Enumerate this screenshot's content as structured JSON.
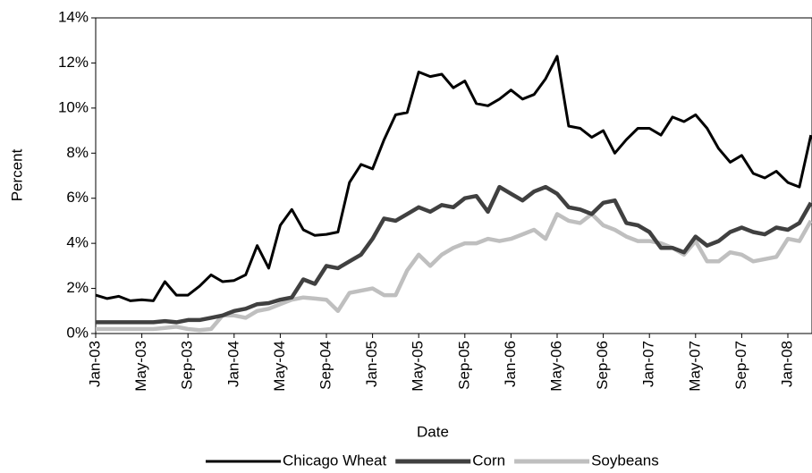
{
  "chart_data": {
    "type": "line",
    "x_label": "Date",
    "y_label": "Percent",
    "categories": [
      "Jan-03",
      null,
      null,
      null,
      "May-03",
      null,
      null,
      null,
      "Sep-03",
      null,
      null,
      null,
      "Jan-04",
      null,
      null,
      null,
      "May-04",
      null,
      null,
      null,
      "Sep-04",
      null,
      null,
      null,
      "Jan-05",
      null,
      null,
      null,
      "May-05",
      null,
      null,
      null,
      "Sep-05",
      null,
      null,
      null,
      "Jan-06",
      null,
      null,
      null,
      "May-06",
      null,
      null,
      null,
      "Sep-06",
      null,
      null,
      null,
      "Jan-07",
      null,
      null,
      null,
      "May-07",
      null,
      null,
      null,
      "Sep-07",
      null,
      null,
      null,
      "Jan-08",
      null,
      null
    ],
    "series": [
      {
        "name": "Chicago Wheat",
        "color": "#000000",
        "values": [
          1.7,
          1.55,
          1.65,
          1.45,
          1.5,
          1.45,
          2.3,
          1.7,
          1.7,
          2.1,
          2.6,
          2.3,
          2.35,
          2.6,
          3.9,
          2.9,
          4.8,
          5.5,
          4.6,
          4.35,
          4.4,
          4.5,
          6.7,
          7.5,
          7.3,
          8.6,
          9.7,
          9.8,
          11.6,
          11.4,
          11.5,
          10.9,
          11.2,
          10.2,
          10.1,
          10.4,
          10.8,
          10.4,
          10.6,
          11.3,
          12.3,
          9.2,
          9.1,
          8.7,
          9.0,
          8.0,
          8.6,
          9.1,
          9.1,
          8.8,
          9.6,
          9.4,
          9.7,
          9.1,
          8.2,
          7.6,
          7.9,
          7.1,
          6.9,
          7.2,
          6.7,
          6.5,
          8.8
        ]
      },
      {
        "name": "Corn",
        "color": "#404040",
        "values": [
          0.5,
          0.5,
          0.5,
          0.5,
          0.5,
          0.5,
          0.55,
          0.5,
          0.6,
          0.6,
          0.7,
          0.8,
          1.0,
          1.1,
          1.3,
          1.35,
          1.5,
          1.6,
          2.4,
          2.2,
          3.0,
          2.9,
          3.2,
          3.5,
          4.2,
          5.1,
          5.0,
          5.3,
          5.6,
          5.4,
          5.7,
          5.6,
          6.0,
          6.1,
          5.4,
          6.5,
          6.2,
          5.9,
          6.3,
          6.5,
          6.2,
          5.6,
          5.5,
          5.3,
          5.8,
          5.9,
          4.9,
          4.8,
          4.5,
          3.8,
          3.8,
          3.6,
          4.3,
          3.9,
          4.1,
          4.5,
          4.7,
          4.5,
          4.4,
          4.7,
          4.6,
          4.9,
          5.8
        ]
      },
      {
        "name": "Soybeans",
        "color": "#bfbfbf",
        "values": [
          0.2,
          0.2,
          0.2,
          0.2,
          0.2,
          0.2,
          0.25,
          0.3,
          0.2,
          0.15,
          0.2,
          0.8,
          0.8,
          0.7,
          1.0,
          1.1,
          1.3,
          1.5,
          1.6,
          1.55,
          1.5,
          1.0,
          1.8,
          1.9,
          2.0,
          1.7,
          1.7,
          2.8,
          3.5,
          3.0,
          3.5,
          3.8,
          4.0,
          4.0,
          4.2,
          4.1,
          4.2,
          4.4,
          4.6,
          4.2,
          5.3,
          5.0,
          4.9,
          5.3,
          4.8,
          4.6,
          4.3,
          4.1,
          4.1,
          4.0,
          3.8,
          3.5,
          4.1,
          3.2,
          3.2,
          3.6,
          3.5,
          3.2,
          3.3,
          3.4,
          4.2,
          4.1,
          5.0
        ]
      }
    ],
    "ylim": [
      0,
      14
    ],
    "yticks": [
      {
        "value": 0,
        "label": "0%"
      },
      {
        "value": 2,
        "label": "2%"
      },
      {
        "value": 4,
        "label": "4%"
      },
      {
        "value": 6,
        "label": "6%"
      },
      {
        "value": 8,
        "label": "8%"
      },
      {
        "value": 10,
        "label": "10%"
      },
      {
        "value": 12,
        "label": "12%"
      },
      {
        "value": 14,
        "label": "14%"
      }
    ],
    "grid": false,
    "legend": "bottom"
  }
}
